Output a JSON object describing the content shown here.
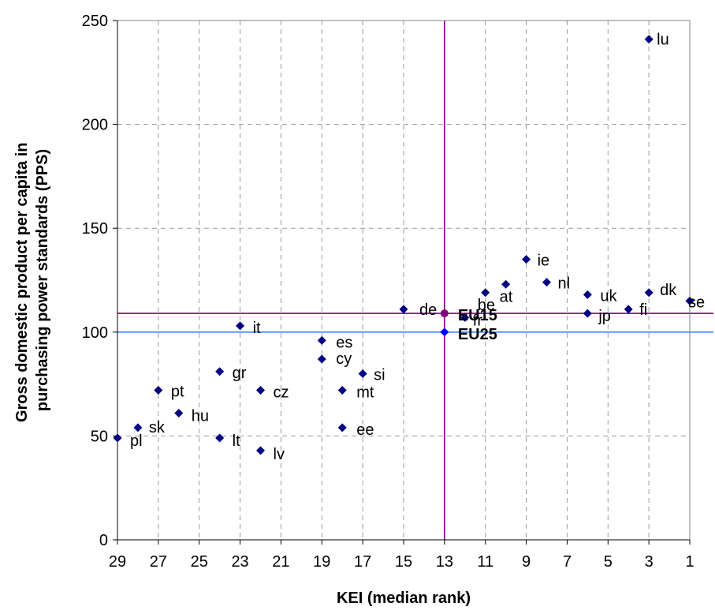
{
  "chart_data": {
    "type": "scatter",
    "xlabel": "KEI (median rank)",
    "ylabel_lines": [
      "Gross domestic product per capita in",
      "purchasing power standards (PPS)"
    ],
    "xlim": [
      29,
      1
    ],
    "x_reversed": true,
    "ylim": [
      0,
      250
    ],
    "xticks": [
      "29",
      "27",
      "25",
      "23",
      "21",
      "19",
      "17",
      "15",
      "13",
      "11",
      "9",
      "7",
      "5",
      "3",
      "1"
    ],
    "yticks": [
      "0",
      "50",
      "100",
      "150",
      "200",
      "250"
    ],
    "grid": {
      "vertical_dashed": true,
      "horizontal_dashed": true
    },
    "marker_color": "#000080",
    "points": [
      {
        "label": "lu",
        "x": 3,
        "y": 241
      },
      {
        "label": "ie",
        "x": 9,
        "y": 135
      },
      {
        "label": "nl",
        "x": 8,
        "y": 124
      },
      {
        "label": "at",
        "x": 10,
        "y": 123
      },
      {
        "label": "be",
        "x": 11,
        "y": 119
      },
      {
        "label": "dk",
        "x": 3,
        "y": 119
      },
      {
        "label": "uk",
        "x": 6,
        "y": 118
      },
      {
        "label": "se",
        "x": 1,
        "y": 115
      },
      {
        "label": "fi",
        "x": 4,
        "y": 111
      },
      {
        "label": "de",
        "x": 15,
        "y": 111
      },
      {
        "label": "jp",
        "x": 6,
        "y": 109
      },
      {
        "label": "fr",
        "x": 12,
        "y": 107
      },
      {
        "label": "it",
        "x": 23,
        "y": 103
      },
      {
        "label": "es",
        "x": 19,
        "y": 96
      },
      {
        "label": "cy",
        "x": 19,
        "y": 87
      },
      {
        "label": "gr",
        "x": 24,
        "y": 81
      },
      {
        "label": "si",
        "x": 17,
        "y": 80
      },
      {
        "label": "pt",
        "x": 27,
        "y": 72
      },
      {
        "label": "cz",
        "x": 22,
        "y": 72
      },
      {
        "label": "mt",
        "x": 18,
        "y": 72
      },
      {
        "label": "hu",
        "x": 26,
        "y": 61
      },
      {
        "label": "sk",
        "x": 28,
        "y": 54
      },
      {
        "label": "ee",
        "x": 18,
        "y": 54
      },
      {
        "label": "pl",
        "x": 29,
        "y": 49
      },
      {
        "label": "lt",
        "x": 24,
        "y": 49
      },
      {
        "label": "lv",
        "x": 22,
        "y": 43
      }
    ],
    "reference_points": [
      {
        "label": "EU15",
        "x": 13,
        "y": 109,
        "color": "#800080"
      },
      {
        "label": "EU25",
        "x": 13,
        "y": 100,
        "color": "#0000ff"
      }
    ],
    "reference_lines": [
      {
        "orientation": "horizontal",
        "value": 109,
        "color": "#800080"
      },
      {
        "orientation": "horizontal",
        "value": 100,
        "color": "#3f7fff"
      },
      {
        "orientation": "vertical",
        "value": 13,
        "color": "#800080"
      }
    ]
  }
}
